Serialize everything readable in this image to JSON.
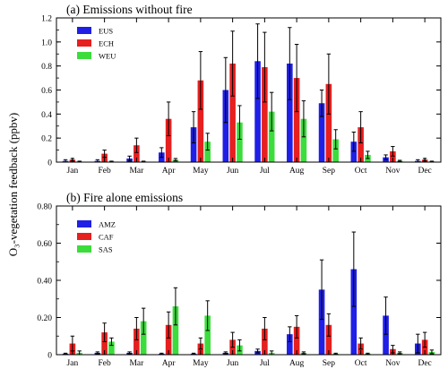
{
  "shared_ylabel": "O₃-vegetation feedback (ppbv)",
  "colors": {
    "blue": "#1f1fe6",
    "red": "#e61f1f",
    "green": "#3cdc3c",
    "axis": "#000000"
  },
  "chart_data": [
    {
      "type": "bar",
      "title": "(a) Emissions without fire",
      "categories": [
        "Jan",
        "Feb",
        "Mar",
        "Apr",
        "May",
        "Jun",
        "Jul",
        "Aug",
        "Sep",
        "Oct",
        "Nov",
        "Dec"
      ],
      "ylim": [
        0,
        1.2
      ],
      "yticks": [
        0,
        0.2,
        0.4,
        0.6,
        0.8,
        1.0,
        1.2
      ],
      "ytick_labels": [
        "0",
        "0.2",
        "0.4",
        "0.6",
        "0.8",
        "1.0",
        "1.2"
      ],
      "legend_position": "top-left",
      "series": [
        {
          "name": "EUS",
          "color": "#1f1fe6",
          "values": [
            0.01,
            0.01,
            0.03,
            0.08,
            0.29,
            0.6,
            0.84,
            0.82,
            0.49,
            0.17,
            0.04,
            0.01
          ],
          "errors": [
            0.01,
            0.01,
            0.02,
            0.04,
            0.13,
            0.27,
            0.31,
            0.3,
            0.11,
            0.08,
            0.02,
            0.01
          ]
        },
        {
          "name": "ECH",
          "color": "#e61f1f",
          "values": [
            0.02,
            0.07,
            0.14,
            0.36,
            0.68,
            0.82,
            0.79,
            0.7,
            0.65,
            0.29,
            0.09,
            0.02
          ],
          "errors": [
            0.01,
            0.03,
            0.06,
            0.14,
            0.24,
            0.27,
            0.29,
            0.28,
            0.25,
            0.13,
            0.04,
            0.01
          ]
        },
        {
          "name": "WEU",
          "color": "#3cdc3c",
          "values": [
            0.005,
            0.005,
            0.005,
            0.02,
            0.17,
            0.33,
            0.42,
            0.36,
            0.19,
            0.06,
            0.01,
            0.005
          ],
          "errors": [
            0.003,
            0.003,
            0.003,
            0.01,
            0.07,
            0.14,
            0.16,
            0.15,
            0.08,
            0.03,
            0.005,
            0.003
          ]
        }
      ]
    },
    {
      "type": "bar",
      "title": "(b) Fire alone emissions",
      "categories": [
        "Jan",
        "Feb",
        "Mar",
        "Apr",
        "May",
        "Jun",
        "Jul",
        "Aug",
        "Sep",
        "Oct",
        "Nov",
        "Dec"
      ],
      "ylim": [
        0,
        0.8
      ],
      "yticks": [
        0,
        0.2,
        0.4,
        0.6,
        0.8
      ],
      "ytick_labels": [
        "0",
        "0.20",
        "0.40",
        "0.60",
        "0.80"
      ],
      "legend_position": "top-left",
      "series": [
        {
          "name": "AMZ",
          "color": "#1f1fe6",
          "values": [
            0.005,
            0.01,
            0.01,
            0.005,
            0.005,
            0.01,
            0.02,
            0.11,
            0.35,
            0.46,
            0.21,
            0.06
          ],
          "errors": [
            0.003,
            0.005,
            0.005,
            0.003,
            0.003,
            0.005,
            0.01,
            0.04,
            0.16,
            0.2,
            0.1,
            0.05
          ]
        },
        {
          "name": "CAF",
          "color": "#e61f1f",
          "values": [
            0.06,
            0.12,
            0.14,
            0.16,
            0.06,
            0.08,
            0.14,
            0.15,
            0.16,
            0.06,
            0.03,
            0.08
          ],
          "errors": [
            0.04,
            0.05,
            0.06,
            0.07,
            0.03,
            0.04,
            0.06,
            0.06,
            0.06,
            0.03,
            0.02,
            0.04
          ]
        },
        {
          "name": "SAS",
          "color": "#3cdc3c",
          "values": [
            0.01,
            0.07,
            0.18,
            0.26,
            0.21,
            0.05,
            0.01,
            0.01,
            0.005,
            0.005,
            0.01,
            0.015
          ],
          "errors": [
            0.01,
            0.02,
            0.07,
            0.1,
            0.08,
            0.03,
            0.01,
            0.005,
            0.003,
            0.003,
            0.005,
            0.01
          ]
        }
      ]
    }
  ]
}
